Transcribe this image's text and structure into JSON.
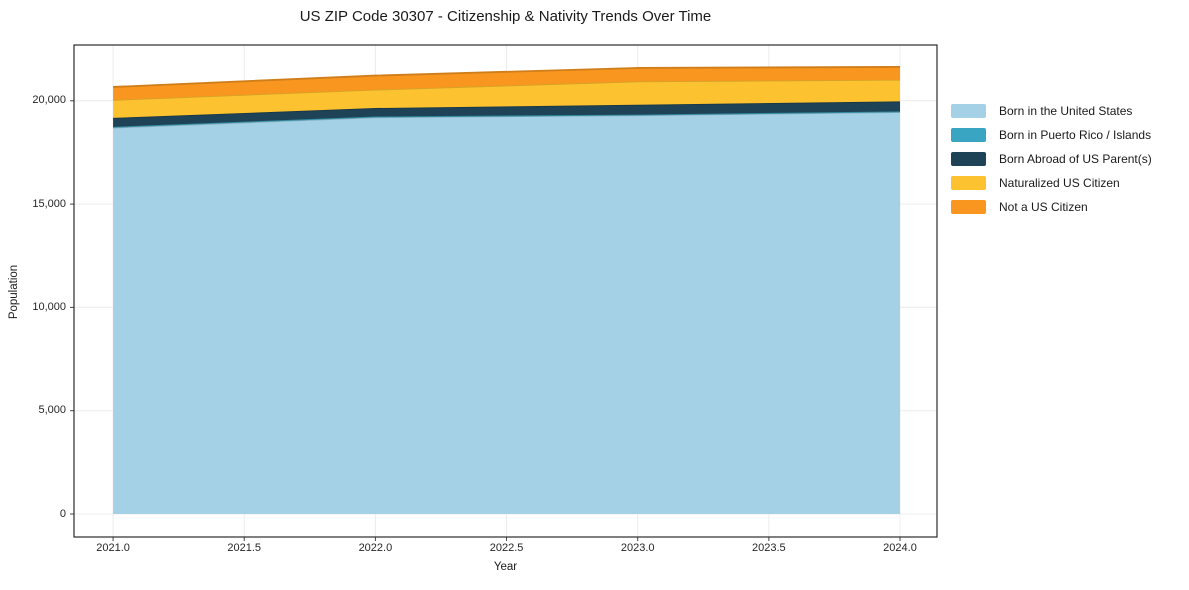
{
  "title": "US ZIP Code 30307 - Citizenship & Nativity Trends Over Time",
  "chart_data": {
    "type": "area",
    "stacked": true,
    "title": "US ZIP Code 30307 - Citizenship & Nativity Trends Over Time",
    "xlabel": "Year",
    "ylabel": "Population",
    "x": [
      2021,
      2022,
      2023,
      2024
    ],
    "series": [
      {
        "name": "Born in the United States",
        "color": "#a5d1e6",
        "values": [
          18700,
          19200,
          19300,
          19450
        ]
      },
      {
        "name": "Born in Puerto Rico / Islands",
        "color": "#3aa5c2",
        "values": [
          40,
          40,
          30,
          40
        ]
      },
      {
        "name": "Born Abroad of US Parent(s)",
        "color": "#1e4356",
        "values": [
          430,
          410,
          480,
          480
        ]
      },
      {
        "name": "Naturalized US Citizen",
        "color": "#fdc22f",
        "values": [
          870,
          890,
          1130,
          1050
        ]
      },
      {
        "name": "Not a US Citizen",
        "color": "#f8961f",
        "values": [
          630,
          680,
          650,
          620
        ]
      }
    ],
    "xticks": {
      "values": [
        2021.0,
        2021.5,
        2022.0,
        2022.5,
        2023.0,
        2023.5,
        2024.0
      ],
      "labels": [
        "2021.0",
        "2021.5",
        "2022.0",
        "2022.5",
        "2023.0",
        "2023.5",
        "2024.0"
      ]
    },
    "yticks": {
      "values": [
        0,
        5000,
        10000,
        15000,
        20000
      ],
      "labels": [
        "0",
        "5,000",
        "10,000",
        "15,000",
        "20,000"
      ]
    },
    "xlim": [
      2020.851,
      2024.141
    ],
    "ylim": [
      -1113,
      22700
    ],
    "grid": true,
    "grid_color": "#ececec",
    "frame_color": "#2b2b2b",
    "tick_color": "#444444",
    "legend_position": "right of axes"
  }
}
